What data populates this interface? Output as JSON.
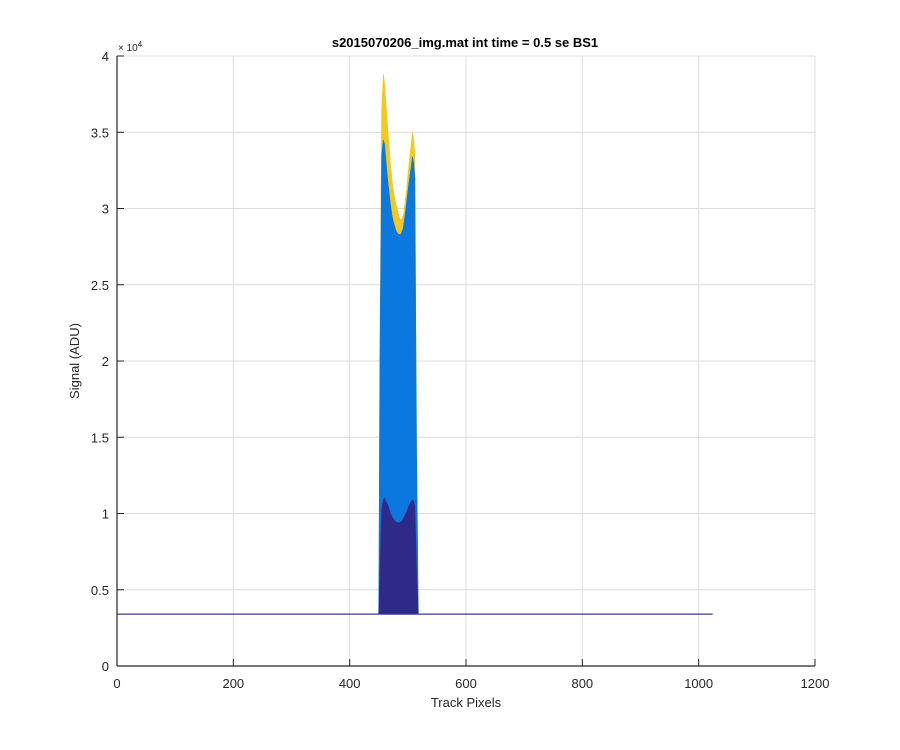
{
  "chart_data": {
    "type": "area",
    "title": "s2015070206_img.mat int time = 0.5 se   BS1",
    "xlabel": "Track Pixels",
    "ylabel": "Signal (ADU)",
    "xlim": [
      0,
      1200
    ],
    "ylim": [
      0,
      40000
    ],
    "x_ticks": [
      0,
      200,
      400,
      600,
      800,
      1000,
      1200
    ],
    "x_tick_labels": [
      "0",
      "200",
      "400",
      "600",
      "800",
      "1000",
      "1200"
    ],
    "y_ticks": [
      0,
      5000,
      10000,
      15000,
      20000,
      25000,
      30000,
      35000,
      40000
    ],
    "y_tick_labels": [
      "0",
      "0.5",
      "1",
      "1.5",
      "2",
      "2.5",
      "3",
      "3.5",
      "4"
    ],
    "y_exponent_base": "× 10",
    "y_exponent_power": "4",
    "grid": true,
    "baseline": 3400,
    "baseline_x_range": [
      0,
      1024
    ],
    "series": [
      {
        "color": "#F5C81F",
        "x": [
          450,
          452,
          455,
          458,
          460,
          462,
          465,
          468,
          470,
          473,
          476,
          480,
          484,
          488,
          492,
          495,
          498,
          500,
          503,
          506,
          508,
          510,
          512,
          515,
          518
        ],
        "y": [
          3400,
          20000,
          36500,
          38800,
          38200,
          37200,
          35500,
          34000,
          33000,
          31800,
          31000,
          30200,
          29600,
          29200,
          29500,
          30300,
          31300,
          32200,
          33300,
          34300,
          35000,
          34600,
          33500,
          15000,
          3400
        ]
      },
      {
        "color": "#0B78E0",
        "x": [
          450,
          452,
          455,
          458,
          460,
          462,
          465,
          468,
          470,
          473,
          476,
          480,
          484,
          488,
          492,
          495,
          498,
          500,
          503,
          506,
          508,
          510,
          512,
          515,
          518
        ],
        "y": [
          3400,
          20000,
          33500,
          34500,
          34200,
          33300,
          32000,
          31000,
          30300,
          29500,
          29000,
          28500,
          28300,
          28300,
          28700,
          29500,
          30400,
          31100,
          32000,
          32800,
          33400,
          33000,
          32000,
          14000,
          3400
        ]
      },
      {
        "color": "#2E2A8A",
        "x": [
          450,
          452,
          455,
          458,
          460,
          462,
          465,
          468,
          470,
          474,
          478,
          482,
          486,
          490,
          494,
          498,
          502,
          506,
          509,
          512,
          515,
          518
        ],
        "y": [
          3400,
          6000,
          10200,
          10900,
          11000,
          10800,
          10600,
          10300,
          10000,
          9700,
          9500,
          9400,
          9400,
          9500,
          9800,
          10100,
          10500,
          10800,
          10900,
          10500,
          6000,
          3400
        ]
      }
    ]
  }
}
